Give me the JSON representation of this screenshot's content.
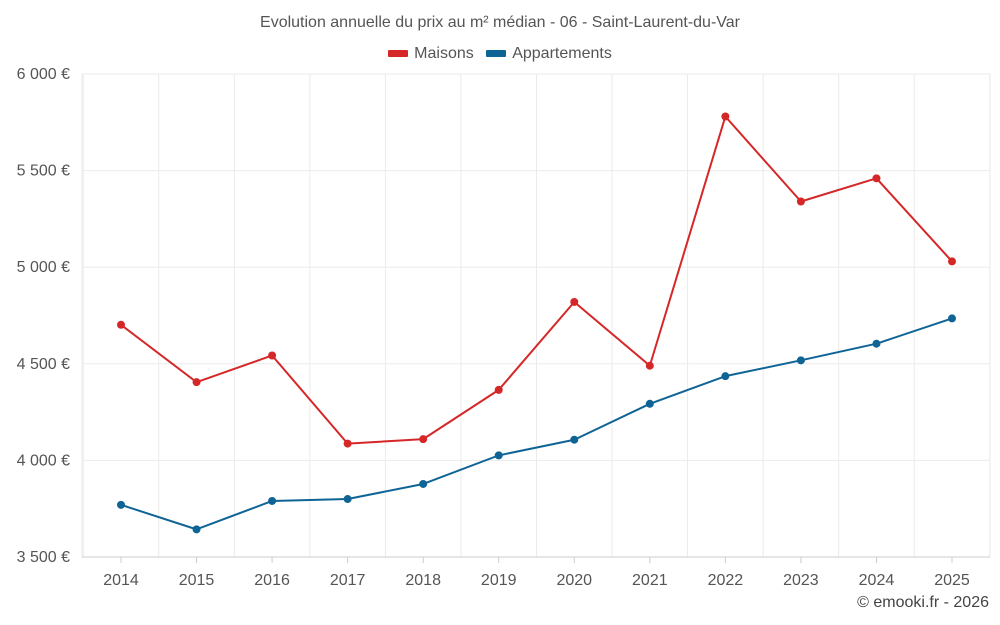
{
  "chart_data": {
    "type": "line",
    "title": "Evolution annuelle du prix au m² médian - 06 - Saint-Laurent-du-Var",
    "categories": [
      "2014",
      "2015",
      "2016",
      "2017",
      "2018",
      "2019",
      "2020",
      "2021",
      "2022",
      "2023",
      "2024",
      "2025"
    ],
    "series": [
      {
        "name": "Maisons",
        "color": "#d62728",
        "values": [
          4702,
          4405,
          4543,
          4087,
          4110,
          4365,
          4820,
          4490,
          5780,
          5340,
          5460,
          5030
        ]
      },
      {
        "name": "Appartements",
        "color": "#0f6496",
        "values": [
          3770,
          3643,
          3790,
          3800,
          3878,
          4026,
          4107,
          4293,
          4436,
          4518,
          4604,
          4735
        ]
      }
    ],
    "ylim": [
      3500,
      6000
    ],
    "yticks": [
      3500,
      4000,
      4500,
      5000,
      5500,
      6000
    ],
    "ytick_labels": [
      "3 500 €",
      "4 000 €",
      "4 500 €",
      "5 000 €",
      "5 500 €",
      "6 000 €"
    ],
    "xlabel": "",
    "ylabel": "",
    "grid": true,
    "legend_position": "top-center"
  },
  "credit": "© emooki.fr - 2026"
}
